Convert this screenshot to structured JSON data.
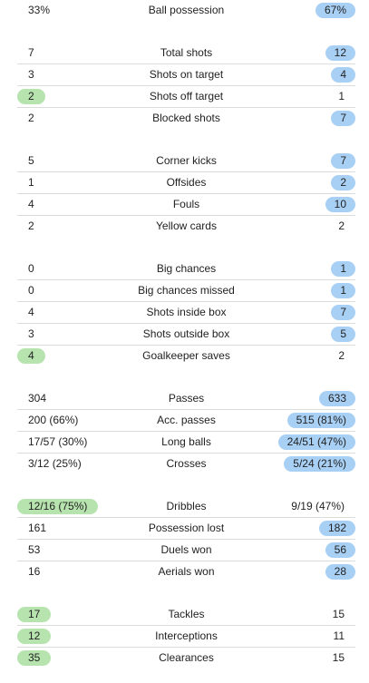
{
  "colors": {
    "home_highlight": "#b7e4ae",
    "away_highlight": "#a8d0f5",
    "divider": "#dcdcdc"
  },
  "groups": [
    {
      "rows": [
        {
          "label": "Ball possession",
          "home": "33%",
          "away": "67%",
          "highlight": "away"
        }
      ]
    },
    {
      "rows": [
        {
          "label": "Total shots",
          "home": "7",
          "away": "12",
          "highlight": "away"
        },
        {
          "label": "Shots on target",
          "home": "3",
          "away": "4",
          "highlight": "away"
        },
        {
          "label": "Shots off target",
          "home": "2",
          "away": "1",
          "highlight": "home"
        },
        {
          "label": "Blocked shots",
          "home": "2",
          "away": "7",
          "highlight": "away"
        }
      ]
    },
    {
      "rows": [
        {
          "label": "Corner kicks",
          "home": "5",
          "away": "7",
          "highlight": "away"
        },
        {
          "label": "Offsides",
          "home": "1",
          "away": "2",
          "highlight": "away"
        },
        {
          "label": "Fouls",
          "home": "4",
          "away": "10",
          "highlight": "away"
        },
        {
          "label": "Yellow cards",
          "home": "2",
          "away": "2",
          "highlight": "none"
        }
      ]
    },
    {
      "rows": [
        {
          "label": "Big chances",
          "home": "0",
          "away": "1",
          "highlight": "away"
        },
        {
          "label": "Big chances missed",
          "home": "0",
          "away": "1",
          "highlight": "away"
        },
        {
          "label": "Shots inside box",
          "home": "4",
          "away": "7",
          "highlight": "away"
        },
        {
          "label": "Shots outside box",
          "home": "3",
          "away": "5",
          "highlight": "away"
        },
        {
          "label": "Goalkeeper saves",
          "home": "4",
          "away": "2",
          "highlight": "home"
        }
      ]
    },
    {
      "rows": [
        {
          "label": "Passes",
          "home": "304",
          "away": "633",
          "highlight": "away"
        },
        {
          "label": "Acc. passes",
          "home": "200 (66%)",
          "away": "515 (81%)",
          "highlight": "away"
        },
        {
          "label": "Long balls",
          "home": "17/57 (30%)",
          "away": "24/51 (47%)",
          "highlight": "away"
        },
        {
          "label": "Crosses",
          "home": "3/12 (25%)",
          "away": "5/24 (21%)",
          "highlight": "away"
        }
      ]
    },
    {
      "rows": [
        {
          "label": "Dribbles",
          "home": "12/16 (75%)",
          "away": "9/19 (47%)",
          "highlight": "home"
        },
        {
          "label": "Possession lost",
          "home": "161",
          "away": "182",
          "highlight": "away"
        },
        {
          "label": "Duels won",
          "home": "53",
          "away": "56",
          "highlight": "away"
        },
        {
          "label": "Aerials won",
          "home": "16",
          "away": "28",
          "highlight": "away"
        }
      ]
    },
    {
      "rows": [
        {
          "label": "Tackles",
          "home": "17",
          "away": "15",
          "highlight": "home"
        },
        {
          "label": "Interceptions",
          "home": "12",
          "away": "11",
          "highlight": "home"
        },
        {
          "label": "Clearances",
          "home": "35",
          "away": "15",
          "highlight": "home"
        }
      ]
    }
  ]
}
